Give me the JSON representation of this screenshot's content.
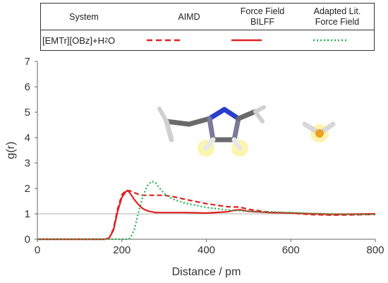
{
  "legend_table": {
    "headers": [
      "System",
      "AIMD",
      "Force Field\nBILFF",
      "Adapted Lit.\nForce Field"
    ],
    "system_label": "[EMTr][OBz]+H",
    "system_sub": "2",
    "system_tail": "O"
  },
  "colors": {
    "aimd": "#e02020",
    "bilff": "#e02020",
    "lit": "#22b14c",
    "reference_line": "#b0b0b0",
    "axis": "#666666"
  },
  "chart_data": {
    "type": "line",
    "title": "",
    "xlabel": "Distance / pm",
    "ylabel": "g(r)",
    "xlim": [
      0,
      800
    ],
    "ylim": [
      0,
      7
    ],
    "xticks": [
      0,
      200,
      400,
      600,
      800
    ],
    "yticks": [
      0,
      1,
      2,
      3,
      4,
      5,
      6,
      7
    ],
    "reference_line_y": 1,
    "series": [
      {
        "name": "AIMD",
        "style": "dashed",
        "x": [
          0,
          160,
          170,
          180,
          190,
          200,
          210,
          220,
          230,
          240,
          250,
          260,
          280,
          300,
          320,
          350,
          400,
          450,
          480,
          500,
          550,
          600,
          650,
          700,
          750,
          800
        ],
        "y": [
          0,
          0,
          0.05,
          0.4,
          1.2,
          1.75,
          1.93,
          1.9,
          1.83,
          1.76,
          1.73,
          1.73,
          1.73,
          1.73,
          1.68,
          1.57,
          1.4,
          1.28,
          1.26,
          1.18,
          1.06,
          1.03,
          0.97,
          0.95,
          0.96,
          0.98
        ]
      },
      {
        "name": "Force Field BILFF",
        "style": "solid",
        "x": [
          0,
          160,
          170,
          180,
          190,
          200,
          210,
          215,
          220,
          230,
          240,
          250,
          260,
          280,
          300,
          350,
          400,
          450,
          470,
          480,
          500,
          550,
          600,
          650,
          700,
          750,
          800
        ],
        "y": [
          0,
          0,
          0.05,
          0.35,
          1.1,
          1.65,
          1.88,
          1.9,
          1.8,
          1.55,
          1.35,
          1.2,
          1.12,
          1.05,
          1.05,
          1.05,
          1.03,
          1.08,
          1.15,
          1.16,
          1.1,
          1.05,
          1.03,
          1.0,
          0.98,
          0.99,
          1.0
        ]
      },
      {
        "name": "Adapted Lit. Force Field",
        "style": "dotted",
        "x": [
          0,
          215,
          220,
          230,
          240,
          250,
          260,
          270,
          280,
          290,
          300,
          320,
          350,
          400,
          450,
          500,
          550,
          600,
          650,
          700,
          750,
          800
        ],
        "y": [
          0,
          0,
          0.05,
          0.4,
          1.1,
          1.7,
          2.1,
          2.28,
          2.22,
          2.0,
          1.8,
          1.58,
          1.42,
          1.25,
          1.15,
          1.1,
          1.08,
          1.05,
          1.02,
          1.0,
          0.98,
          0.97
        ]
      }
    ]
  }
}
